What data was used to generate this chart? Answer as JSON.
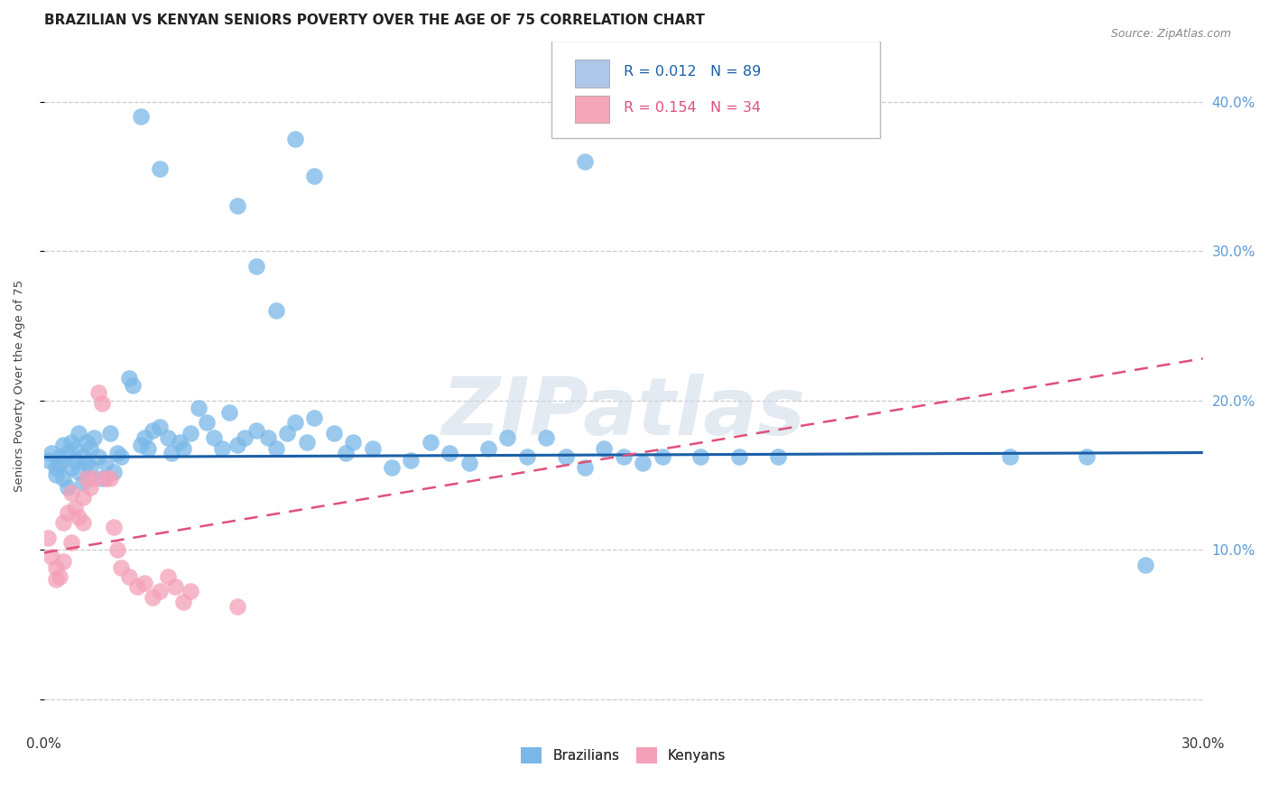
{
  "title": "BRAZILIAN VS KENYAN SENIORS POVERTY OVER THE AGE OF 75 CORRELATION CHART",
  "source": "Source: ZipAtlas.com",
  "ylabel": "Seniors Poverty Over the Age of 75",
  "xlim": [
    0.0,
    0.3
  ],
  "ylim": [
    -0.02,
    0.44
  ],
  "xticks": [
    0.0,
    0.05,
    0.1,
    0.15,
    0.2,
    0.25,
    0.3
  ],
  "yticks": [
    0.0,
    0.1,
    0.2,
    0.3,
    0.4
  ],
  "brazil_color": "#7ab8e8",
  "kenya_color": "#f4a0b8",
  "brazil_line_color": "#1a5fa8",
  "kenya_line_color": "#e0507a",
  "brazil_line_y0": 0.162,
  "brazil_line_y1": 0.165,
  "kenya_line_y0": 0.098,
  "kenya_line_y1": 0.228,
  "right_tick_color": "#5b9bd5",
  "legend_box_color": "#aec6e8",
  "legend_box_color2": "#f4a7b9",
  "watermark": "ZIPatlas",
  "background_color": "#ffffff",
  "grid_color": "#cccccc",
  "brazil_x": [
    0.001,
    0.002,
    0.003,
    0.003,
    0.004,
    0.004,
    0.005,
    0.005,
    0.006,
    0.006,
    0.007,
    0.007,
    0.008,
    0.008,
    0.009,
    0.009,
    0.01,
    0.01,
    0.011,
    0.011,
    0.012,
    0.012,
    0.013,
    0.014,
    0.015,
    0.016,
    0.017,
    0.018,
    0.019,
    0.02,
    0.022,
    0.023,
    0.025,
    0.026,
    0.027,
    0.028,
    0.03,
    0.032,
    0.033,
    0.035,
    0.036,
    0.038,
    0.04,
    0.042,
    0.044,
    0.046,
    0.048,
    0.05,
    0.052,
    0.055,
    0.058,
    0.06,
    0.063,
    0.065,
    0.068,
    0.07,
    0.075,
    0.078,
    0.08,
    0.085,
    0.09,
    0.095,
    0.1,
    0.105,
    0.11,
    0.115,
    0.12,
    0.125,
    0.13,
    0.135,
    0.14,
    0.145,
    0.15,
    0.155,
    0.16,
    0.17,
    0.18,
    0.19,
    0.14,
    0.06,
    0.065,
    0.07,
    0.025,
    0.03,
    0.05,
    0.055,
    0.25,
    0.27,
    0.285
  ],
  "brazil_y": [
    0.16,
    0.165,
    0.155,
    0.15,
    0.162,
    0.158,
    0.148,
    0.17,
    0.142,
    0.165,
    0.172,
    0.155,
    0.16,
    0.168,
    0.152,
    0.178,
    0.145,
    0.162,
    0.158,
    0.172,
    0.155,
    0.168,
    0.175,
    0.162,
    0.148,
    0.158,
    0.178,
    0.152,
    0.165,
    0.162,
    0.215,
    0.21,
    0.17,
    0.175,
    0.168,
    0.18,
    0.182,
    0.175,
    0.165,
    0.172,
    0.168,
    0.178,
    0.195,
    0.185,
    0.175,
    0.168,
    0.192,
    0.17,
    0.175,
    0.18,
    0.175,
    0.168,
    0.178,
    0.185,
    0.172,
    0.188,
    0.178,
    0.165,
    0.172,
    0.168,
    0.155,
    0.16,
    0.172,
    0.165,
    0.158,
    0.168,
    0.175,
    0.162,
    0.175,
    0.162,
    0.155,
    0.168,
    0.162,
    0.158,
    0.162,
    0.162,
    0.162,
    0.162,
    0.36,
    0.26,
    0.375,
    0.35,
    0.39,
    0.355,
    0.33,
    0.29,
    0.162,
    0.162,
    0.09
  ],
  "kenya_x": [
    0.001,
    0.002,
    0.003,
    0.003,
    0.004,
    0.005,
    0.005,
    0.006,
    0.007,
    0.007,
    0.008,
    0.009,
    0.01,
    0.01,
    0.011,
    0.012,
    0.013,
    0.014,
    0.015,
    0.016,
    0.017,
    0.018,
    0.019,
    0.02,
    0.022,
    0.024,
    0.026,
    0.028,
    0.03,
    0.032,
    0.034,
    0.036,
    0.038,
    0.05
  ],
  "kenya_y": [
    0.108,
    0.095,
    0.08,
    0.088,
    0.082,
    0.092,
    0.118,
    0.125,
    0.105,
    0.138,
    0.128,
    0.122,
    0.135,
    0.118,
    0.148,
    0.142,
    0.148,
    0.205,
    0.198,
    0.148,
    0.148,
    0.115,
    0.1,
    0.088,
    0.082,
    0.075,
    0.078,
    0.068,
    0.072,
    0.082,
    0.075,
    0.065,
    0.072,
    0.062
  ]
}
